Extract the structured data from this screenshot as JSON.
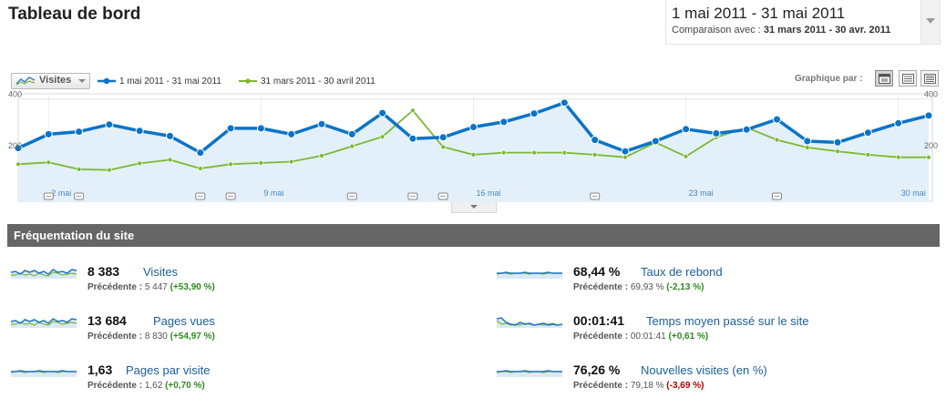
{
  "page": {
    "title": "Tableau de bord"
  },
  "date_range": {
    "range": "1 mai 2011 - 31 mai 2011",
    "compare_prefix": "Comparaison avec : ",
    "compare_range": "31 mars 2011 - 30 avr. 2011"
  },
  "chart_controls": {
    "metric": "Visites",
    "graph_by_label": "Graphique par :",
    "views": [
      "day",
      "week",
      "month"
    ],
    "active_view": "day"
  },
  "chart_data": {
    "type": "line",
    "ylim": [
      0,
      420
    ],
    "y_ticks": [
      "400",
      "200"
    ],
    "x_tick_labels": [
      "2 mai",
      "9 mai",
      "16 mai",
      "23 mai",
      "30 mai"
    ],
    "series": [
      {
        "name": "1 mai 2011 - 31 mai 2011",
        "color": "#0b73c9",
        "values": [
          208,
          262,
          272,
          300,
          275,
          255,
          190,
          285,
          285,
          262,
          302,
          262,
          345,
          245,
          250,
          290,
          310,
          343,
          385,
          240,
          195,
          235,
          282,
          265,
          280,
          320,
          235,
          230,
          268,
          305,
          335
        ]
      },
      {
        "name": "31 mars 2011 - 30 avril 2011",
        "color": "#7cb82f",
        "values": [
          145,
          152,
          125,
          122,
          148,
          162,
          128,
          145,
          150,
          155,
          178,
          215,
          252,
          355,
          212,
          182,
          190,
          190,
          190,
          182,
          172,
          230,
          175,
          250,
          288,
          240,
          210,
          195,
          182,
          172,
          172
        ]
      }
    ],
    "annotation_days": [
      2,
      3,
      7,
      8,
      12,
      14,
      15,
      20,
      26
    ]
  },
  "section": {
    "title": "Fréquentation du site"
  },
  "stats": [
    {
      "value": "8 383",
      "name": "Visites",
      "prev_label": "Précédente :",
      "prev_value": "5 447",
      "change": "(+53,90 %)",
      "trend": "pos",
      "spark": "visits"
    },
    {
      "value": "68,44 %",
      "name": "Taux de rebond",
      "prev_label": "Précédente :",
      "prev_value": "69,93 %",
      "change": "(-2,13 %)",
      "trend": "pos",
      "spark": "flat"
    },
    {
      "value": "13 684",
      "name": "Pages vues",
      "prev_label": "Précédente :",
      "prev_value": "8 830",
      "change": "(+54,97 %)",
      "trend": "pos",
      "spark": "visits"
    },
    {
      "value": "00:01:41",
      "name": "Temps moyen passé sur le site",
      "prev_label": "Précédente :",
      "prev_value": "00:01:41",
      "change": "(+0,61 %)",
      "trend": "pos",
      "spark": "spiky"
    },
    {
      "value": "1,63",
      "name": "Pages par visite",
      "prev_label": "Précédente :",
      "prev_value": "1,62",
      "change": "(+0,70 %)",
      "trend": "pos",
      "spark": "flat"
    },
    {
      "value": "76,26 %",
      "name": "Nouvelles visites (en %)",
      "prev_label": "Précédente :",
      "prev_value": "79,18 %",
      "change": "(-3,69 %)",
      "trend": "neg",
      "spark": "flat"
    }
  ]
}
